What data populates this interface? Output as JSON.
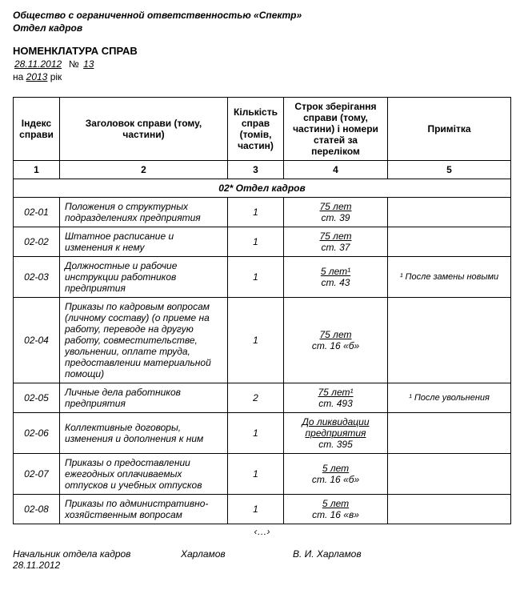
{
  "header": {
    "org": "Общество с ограниченной ответственностью «Спектр»",
    "dept": "Отдел кадров"
  },
  "doc": {
    "title": "НОМЕНКЛАТУРА СПРАВ",
    "date": "28.11.2012",
    "num_label": "№",
    "num": "13",
    "year_prefix": "на",
    "year": "2013",
    "year_suffix": "рік"
  },
  "table": {
    "headers": {
      "idx": "Індекс справи",
      "title": "Заголовок справи (тому, частини)",
      "qty": "Кількість справ (томів, частин)",
      "term": "Строк зберігання справи (тому, частини) і номери статей за переліком",
      "note": "Примітка"
    },
    "colnums": {
      "c1": "1",
      "c2": "2",
      "c3": "3",
      "c4": "4",
      "c5": "5"
    },
    "section": "02* Отдел кадров",
    "rows": [
      {
        "idx": "02-01",
        "title": "Положения о структурных подразделениях предприятия",
        "qty": "1",
        "term_top": "75 лет",
        "term_bot": "ст. 39",
        "note": ""
      },
      {
        "idx": "02-02",
        "title": "Штатное расписание и изменения к нему",
        "qty": "1",
        "term_top": "75 лет",
        "term_bot": "ст. 37",
        "note": ""
      },
      {
        "idx": "02-03",
        "title": "Должностные и рабочие инструкции работников предприятия",
        "qty": "1",
        "term_top": "5 лет¹",
        "term_bot": "ст. 43",
        "note": "¹ После замены новыми"
      },
      {
        "idx": "02-04",
        "title": "Приказы по кадровым вопросам (личному составу) (о приеме на работу, переводе на другую работу, совместительстве, увольнении, оплате труда, предоставлении материальной помощи)",
        "qty": "1",
        "term_top": "75 лет",
        "term_bot": "ст. 16 «б»",
        "note": ""
      },
      {
        "idx": "02-05",
        "title": "Личные дела работников предприятия",
        "qty": "2",
        "term_top": "75 лет¹",
        "term_bot": "ст. 493",
        "note": "¹ После увольнения"
      },
      {
        "idx": "02-06",
        "title": "Коллективные договоры, изменения и дополнения к ним",
        "qty": "1",
        "term_top": "До ликвидации предприятия",
        "term_bot": "ст. 395",
        "note": ""
      },
      {
        "idx": "02-07",
        "title": "Приказы о предоставлении ежегодных оплачиваемых отпусков и учебных отпусков",
        "qty": "1",
        "term_top": "5 лет",
        "term_bot": "ст. 16 «б»",
        "note": ""
      },
      {
        "idx": "02-08",
        "title": "Приказы по административно-хозяйственным вопросам",
        "qty": "1",
        "term_top": "5 лет",
        "term_bot": "ст. 16 «в»",
        "note": ""
      }
    ],
    "ellipsis": "‹…›"
  },
  "signature": {
    "role": "Начальник отдела кадров",
    "sign": "Харламов",
    "name": "В. И. Харламов",
    "date": "28.11.2012"
  }
}
